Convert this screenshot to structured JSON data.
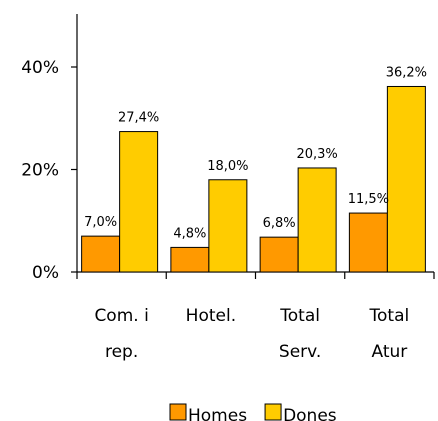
{
  "chart_data": {
    "type": "bar",
    "title": "",
    "xlabel": "",
    "ylabel": "",
    "ylim": [
      0,
      50
    ],
    "yticks": [
      {
        "value": 0,
        "label": "0%"
      },
      {
        "value": 20,
        "label": "20%"
      },
      {
        "value": 40,
        "label": "40%"
      }
    ],
    "categories": [
      [
        "Com. i",
        "rep."
      ],
      [
        "Hotel."
      ],
      [
        "Total",
        "Serv."
      ],
      [
        "Total",
        "Atur"
      ]
    ],
    "series": [
      {
        "name": "Homes",
        "color": "#FF9900",
        "values": [
          7.0,
          4.8,
          6.8,
          11.5
        ],
        "labels": [
          "7,0%",
          "4,8%",
          "6,8%",
          "11,5%"
        ]
      },
      {
        "name": "Dones",
        "color": "#FFCC00",
        "values": [
          27.4,
          18.0,
          20.3,
          36.2
        ],
        "labels": [
          "27,4%",
          "18,0%",
          "20,3%",
          "36,2%"
        ]
      }
    ],
    "grid": false,
    "legend_position": "bottom"
  }
}
